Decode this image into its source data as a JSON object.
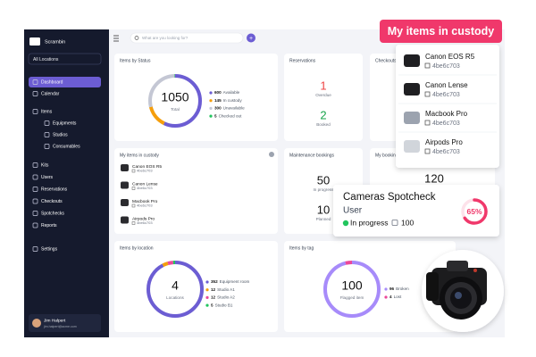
{
  "sidebar": {
    "brand": "Scrambin",
    "location": "All Locations",
    "nav": [
      {
        "label": "Dashboard"
      },
      {
        "label": "Calendar"
      },
      {
        "label": "Items",
        "children": [
          "Equipments",
          "Studios",
          "Consumables"
        ]
      },
      {
        "label": "Kits"
      },
      {
        "label": "Users"
      },
      {
        "label": "Reservations"
      },
      {
        "label": "Checkouts"
      },
      {
        "label": "Spotchecks"
      },
      {
        "label": "Reports"
      }
    ],
    "settings": "Settings",
    "user": {
      "name": "Jim Halpert",
      "email": "jim.halpert@acme.com"
    }
  },
  "topbar": {
    "search_placeholder": "What are you looking for?"
  },
  "items_by_status": {
    "title": "Items by Status",
    "total": 1050,
    "total_label": "Total",
    "legend": [
      {
        "value": 600,
        "label": "Available",
        "color": "#6c5dd3"
      },
      {
        "value": 145,
        "label": "In custody",
        "color": "#f59e0b"
      },
      {
        "value": 300,
        "label": "Unavailable",
        "color": "#c4c7d4"
      },
      {
        "value": 5,
        "label": "Checked out",
        "color": "#22c55e"
      }
    ]
  },
  "reservations": {
    "title": "Reservations",
    "overdue": 1,
    "overdue_label": "Overdue",
    "booked": 2,
    "booked_label": "Booked"
  },
  "checkouts": {
    "title": "Checkouts"
  },
  "my_items": {
    "title": "My items in custody",
    "items": [
      {
        "name": "Canon EOS R5",
        "code": "4be6c703"
      },
      {
        "name": "Canon Lense",
        "code": "4be6c703"
      },
      {
        "name": "Macbook Pro",
        "code": "4be6c703"
      },
      {
        "name": "Airpods Pro",
        "code": "4be6c703"
      }
    ]
  },
  "maintenance": {
    "title": "Maintenance bookings",
    "in_progress": 50,
    "in_progress_label": "In progress",
    "planned": 10,
    "planned_label": "Planned"
  },
  "my_bookings": {
    "title": "My bookings",
    "value": 120
  },
  "items_by_location": {
    "title": "Items by location",
    "total": 4,
    "total_label": "Locations",
    "legend": [
      {
        "value": 352,
        "label": "Equipment room",
        "color": "#6c5dd3"
      },
      {
        "value": 12,
        "label": "Studio A1",
        "color": "#f59e0b"
      },
      {
        "value": 12,
        "label": "Studio A2",
        "color": "#ec4899"
      },
      {
        "value": 5,
        "label": "Studio B1",
        "color": "#22c55e"
      }
    ]
  },
  "items_by_tag": {
    "title": "Items by tag",
    "total": 100,
    "total_label": "Flagged item",
    "legend": [
      {
        "value": 96,
        "label": "Broken",
        "color": "#a78bfa"
      },
      {
        "value": 4,
        "label": "Lost",
        "color": "#ec4899"
      }
    ]
  },
  "custody_popup": {
    "title": "My items in custody",
    "items": [
      {
        "name": "Canon EOS R5",
        "code": "4be6c703"
      },
      {
        "name": "Canon Lense",
        "code": "4be6c703"
      },
      {
        "name": "Macbook Pro",
        "code": "4be6c703"
      },
      {
        "name": "Airpods Pro",
        "code": "4be6c703"
      }
    ]
  },
  "spotcheck": {
    "title": "Cameras Spotcheck",
    "assignee": "User",
    "status": "In progress",
    "count": 100,
    "progress": {
      "value": 65,
      "label": "65%"
    }
  }
}
